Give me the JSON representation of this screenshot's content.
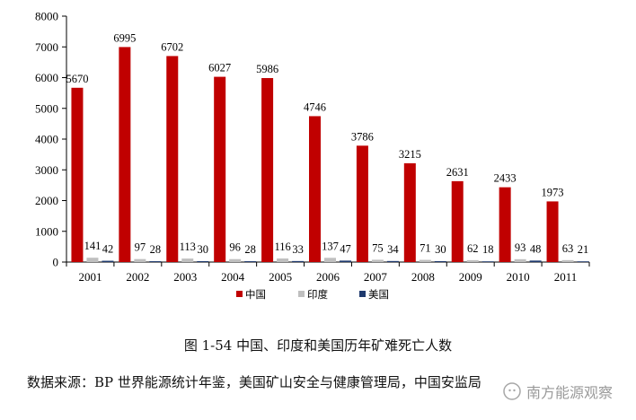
{
  "chart_data": {
    "type": "bar",
    "categories": [
      "2001",
      "2002",
      "2003",
      "2004",
      "2005",
      "2006",
      "2007",
      "2008",
      "2009",
      "2010",
      "2011"
    ],
    "series": [
      {
        "name": "中国",
        "color": "#C00000",
        "values": [
          5670,
          6995,
          6702,
          6027,
          5986,
          4746,
          3786,
          3215,
          2631,
          2433,
          1973
        ]
      },
      {
        "name": "印度",
        "color": "#BFBFBF",
        "values": [
          141,
          97,
          113,
          96,
          116,
          137,
          75,
          71,
          62,
          93,
          63
        ]
      },
      {
        "name": "美国",
        "color": "#1F3A6E",
        "values": [
          42,
          28,
          30,
          28,
          33,
          47,
          34,
          30,
          18,
          48,
          21
        ]
      }
    ],
    "ylim": [
      0,
      8000
    ],
    "yticks": [
      0,
      1000,
      2000,
      3000,
      4000,
      5000,
      6000,
      7000,
      8000
    ],
    "grid": false,
    "legend_position": "bottom"
  },
  "caption": "图 1-54      中国、印度和美国历年矿难死亡人数",
  "source": "数据来源：BP 世界能源统计年鉴，美国矿山安全与健康管理局，中国安监局",
  "watermark": "南方能源观察"
}
